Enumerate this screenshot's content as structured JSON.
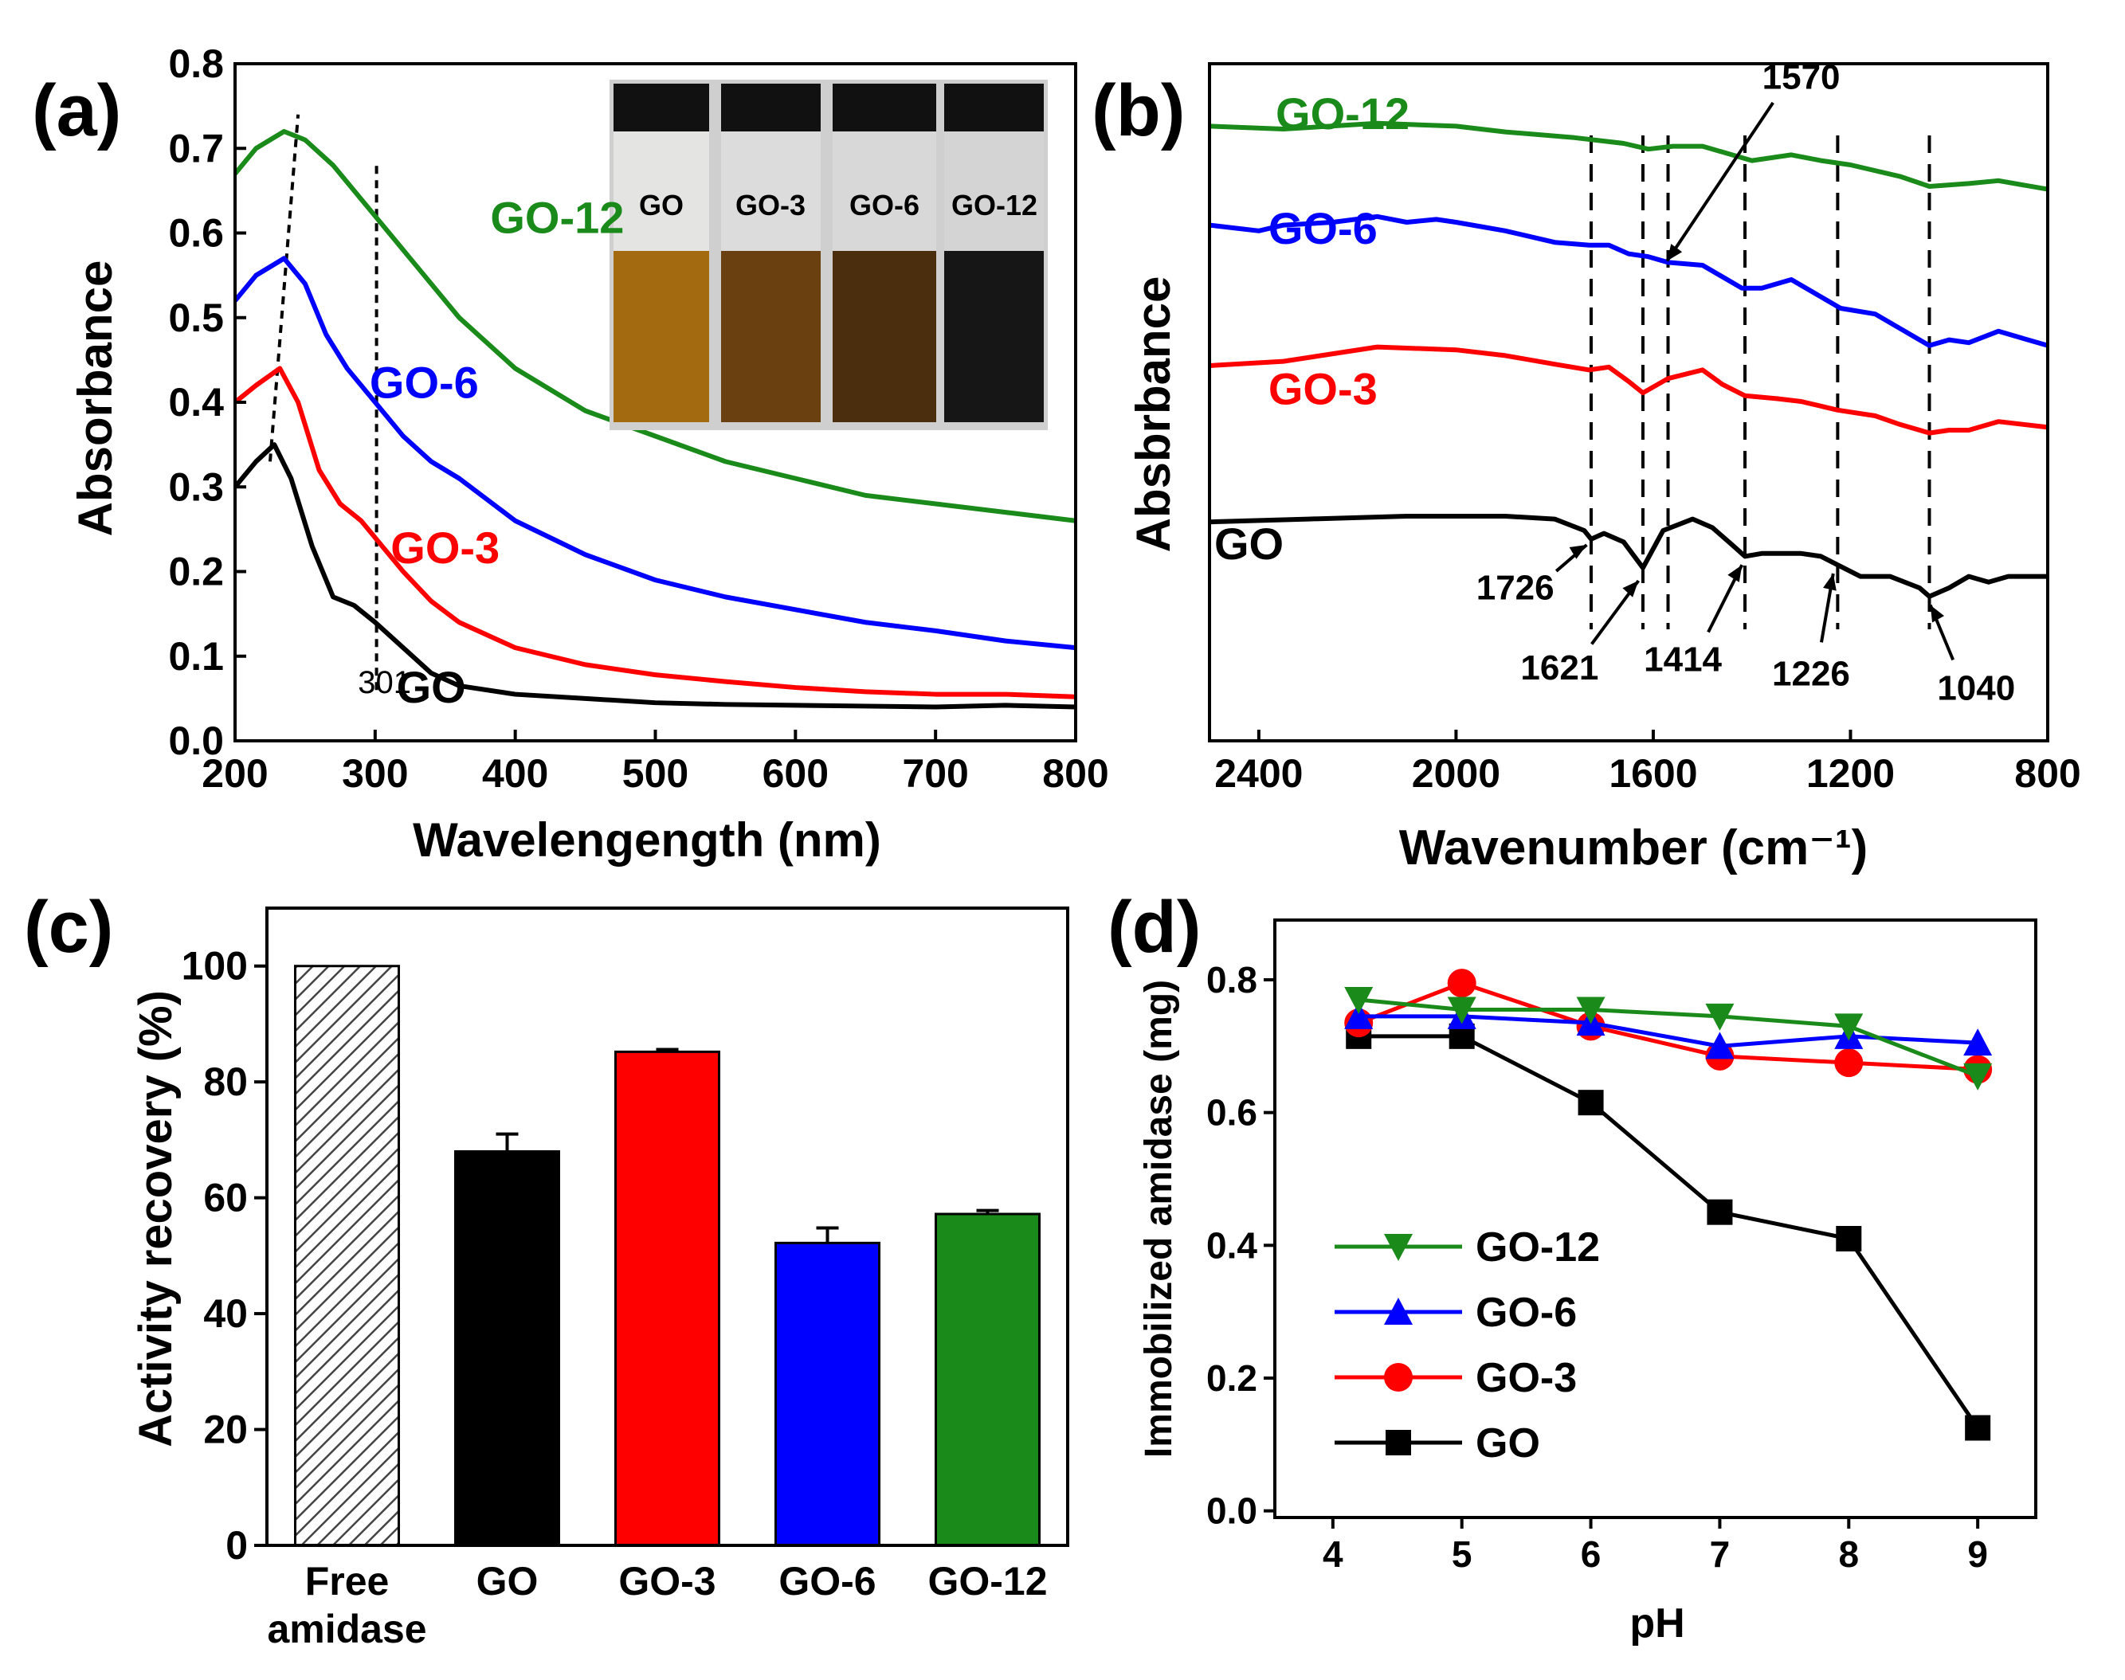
{
  "colors": {
    "black": "#000000",
    "red": "#ff0000",
    "blue": "#0000ff",
    "green": "#1a8a1a",
    "bar_green": "#1a8a1a",
    "hatch": "#444444"
  },
  "panels": {
    "a": {
      "label": "(a)"
    },
    "b": {
      "label": "(b)"
    },
    "c": {
      "label": "(c)"
    },
    "d": {
      "label": "(d)"
    }
  },
  "chart_data": [
    {
      "id": "a",
      "type": "line",
      "xlabel": "Wavelengength (nm)",
      "ylabel": "Absorbance",
      "xlim": [
        200,
        800
      ],
      "ylim": [
        0.0,
        0.8
      ],
      "xticks": [
        200,
        300,
        400,
        500,
        600,
        700,
        800
      ],
      "yticks": [
        0.0,
        0.1,
        0.2,
        0.3,
        0.4,
        0.5,
        0.6,
        0.7,
        0.8
      ],
      "ytick_labels": [
        "0.0",
        "0.1",
        "0.2",
        "0.3",
        "0.4",
        "0.5",
        "0.6",
        "0.7",
        "0.8"
      ],
      "series": [
        {
          "name": "GO",
          "color": "#000000",
          "x": [
            200,
            215,
            228,
            240,
            255,
            270,
            285,
            300,
            320,
            340,
            360,
            400,
            450,
            500,
            550,
            600,
            650,
            700,
            750,
            800
          ],
          "y": [
            0.3,
            0.33,
            0.35,
            0.31,
            0.23,
            0.17,
            0.16,
            0.14,
            0.11,
            0.08,
            0.065,
            0.055,
            0.05,
            0.045,
            0.043,
            0.042,
            0.041,
            0.04,
            0.042,
            0.04
          ]
        },
        {
          "name": "GO-3",
          "color": "#ff0000",
          "x": [
            200,
            215,
            232,
            245,
            260,
            275,
            290,
            300,
            320,
            340,
            360,
            400,
            450,
            500,
            550,
            600,
            650,
            700,
            750,
            800
          ],
          "y": [
            0.4,
            0.42,
            0.44,
            0.4,
            0.32,
            0.28,
            0.26,
            0.24,
            0.2,
            0.165,
            0.14,
            0.11,
            0.09,
            0.078,
            0.07,
            0.063,
            0.058,
            0.055,
            0.055,
            0.052
          ]
        },
        {
          "name": "GO-6",
          "color": "#0000ff",
          "x": [
            200,
            215,
            235,
            250,
            265,
            280,
            300,
            320,
            340,
            360,
            400,
            450,
            500,
            550,
            600,
            650,
            700,
            750,
            800
          ],
          "y": [
            0.52,
            0.55,
            0.57,
            0.54,
            0.48,
            0.44,
            0.4,
            0.36,
            0.33,
            0.31,
            0.26,
            0.22,
            0.19,
            0.17,
            0.155,
            0.14,
            0.13,
            0.118,
            0.11
          ]
        },
        {
          "name": "GO-12",
          "color": "#1a8a1a",
          "x": [
            200,
            215,
            235,
            250,
            270,
            300,
            330,
            360,
            400,
            450,
            500,
            550,
            600,
            650,
            700,
            750,
            800
          ],
          "y": [
            0.67,
            0.7,
            0.72,
            0.71,
            0.68,
            0.62,
            0.56,
            0.5,
            0.44,
            0.39,
            0.36,
            0.33,
            0.31,
            0.29,
            0.28,
            0.27,
            0.26
          ]
        }
      ],
      "series_labels": [
        {
          "text": "GO-12",
          "x": 430,
          "y": 0.6,
          "color": "#1a8a1a"
        },
        {
          "text": "GO-6",
          "x": 335,
          "y": 0.405,
          "color": "#0000ff"
        },
        {
          "text": "GO-3",
          "x": 350,
          "y": 0.21,
          "color": "#ff0000"
        },
        {
          "text": "GO",
          "x": 340,
          "y": 0.045,
          "color": "#000000"
        }
      ],
      "annotations": [
        {
          "text": "301",
          "x": 301,
          "y": 0.08
        }
      ],
      "guides": [
        {
          "x1": 225,
          "y1": 0.33,
          "x2": 245,
          "y2": 0.74
        },
        {
          "x1": 301,
          "y1": 0.06,
          "x2": 301,
          "y2": 0.68
        }
      ],
      "inset": {
        "vial_labels": [
          "GO",
          "GO-3",
          "GO-6",
          "GO-12"
        ]
      }
    },
    {
      "id": "b",
      "type": "line",
      "xlabel": "Wavenumber (cm⁻¹)",
      "ylabel": "Absbrbance",
      "xlim": [
        2500,
        800
      ],
      "xticks": [
        2400,
        2000,
        1600,
        1200,
        800
      ],
      "series": [
        {
          "name": "GO-12",
          "color": "#1a8a1a",
          "offset": 2.8,
          "x": [
            2500,
            2350,
            2160,
            2000,
            1900,
            1760,
            1660,
            1610,
            1560,
            1500,
            1440,
            1400,
            1320,
            1260,
            1200,
            1100,
            1040,
            960,
            900,
            800
          ],
          "y": [
            0.32,
            0.3,
            0.34,
            0.32,
            0.28,
            0.24,
            0.2,
            0.16,
            0.18,
            0.18,
            0.12,
            0.08,
            0.12,
            0.08,
            0.05,
            -0.03,
            -0.1,
            -0.08,
            -0.06,
            -0.12
          ]
        },
        {
          "name": "GO-6",
          "color": "#0000ff",
          "offset": 1.95,
          "x": [
            2500,
            2400,
            2350,
            2250,
            2160,
            2100,
            2040,
            2000,
            1900,
            1800,
            1730,
            1690,
            1650,
            1610,
            1570,
            1500,
            1460,
            1420,
            1380,
            1320,
            1270,
            1220,
            1150,
            1100,
            1060,
            1040,
            1000,
            960,
            900,
            800
          ],
          "y": [
            0.48,
            0.44,
            0.48,
            0.5,
            0.54,
            0.5,
            0.52,
            0.5,
            0.44,
            0.36,
            0.34,
            0.34,
            0.28,
            0.26,
            0.22,
            0.2,
            0.12,
            0.04,
            0.04,
            0.1,
            0.0,
            -0.1,
            -0.14,
            -0.24,
            -0.32,
            -0.36,
            -0.32,
            -0.34,
            -0.26,
            -0.36
          ]
        },
        {
          "name": "GO-3",
          "color": "#ff0000",
          "offset": 1.0,
          "x": [
            2500,
            2350,
            2160,
            2000,
            1900,
            1800,
            1730,
            1690,
            1650,
            1621,
            1570,
            1500,
            1460,
            1414,
            1350,
            1300,
            1226,
            1150,
            1100,
            1040,
            1000,
            960,
            900,
            800
          ],
          "y": [
            0.45,
            0.48,
            0.58,
            0.56,
            0.52,
            0.46,
            0.42,
            0.44,
            0.34,
            0.26,
            0.36,
            0.42,
            0.32,
            0.24,
            0.22,
            0.2,
            0.14,
            0.1,
            0.04,
            -0.02,
            0.0,
            0.0,
            0.06,
            0.02
          ]
        },
        {
          "name": "GO",
          "color": "#000000",
          "offset": 0.0,
          "x": [
            2500,
            2300,
            2100,
            1900,
            1800,
            1740,
            1726,
            1700,
            1660,
            1621,
            1580,
            1520,
            1480,
            1440,
            1414,
            1380,
            1300,
            1260,
            1226,
            1180,
            1120,
            1060,
            1040,
            1000,
            960,
            920,
            880,
            800
          ],
          "y": [
            0.36,
            0.38,
            0.4,
            0.4,
            0.38,
            0.3,
            0.24,
            0.28,
            0.22,
            0.04,
            0.3,
            0.38,
            0.32,
            0.2,
            0.12,
            0.14,
            0.14,
            0.12,
            0.06,
            -0.02,
            -0.02,
            -0.1,
            -0.16,
            -0.1,
            -0.02,
            -0.06,
            -0.02,
            -0.02
          ]
        }
      ],
      "series_labels": [
        {
          "text": "GO-12",
          "x": 2230,
          "y": 3.1,
          "color": "#1a8a1a"
        },
        {
          "text": "GO-6",
          "x": 2270,
          "y": 2.3,
          "color": "#0000ff"
        },
        {
          "text": "GO-3",
          "x": 2270,
          "y": 1.18,
          "color": "#ff0000"
        },
        {
          "text": "GO",
          "x": 2420,
          "y": 0.1,
          "color": "#000000"
        }
      ],
      "peak_lines": [
        1726,
        1621,
        1570,
        1414,
        1226,
        1040
      ],
      "peak_labels": [
        {
          "text": "1726",
          "x": 1880,
          "y": -0.18,
          "tip_x": 1735,
          "tip_y": 0.2
        },
        {
          "text": "1621",
          "x": 1790,
          "y": -0.74,
          "tip_x": 1630,
          "tip_y": -0.05
        },
        {
          "text": "1414",
          "x": 1540,
          "y": -0.68,
          "tip_x": 1420,
          "tip_y": 0.06
        },
        {
          "text": "1226",
          "x": 1280,
          "y": -0.78,
          "tip_x": 1235,
          "tip_y": 0.0
        },
        {
          "text": "1040",
          "x": 945,
          "y": -0.88,
          "tip_x": 1038,
          "tip_y": -0.22
        },
        {
          "text": "1570",
          "x": 1300,
          "y": 3.38,
          "tip_x": 1572,
          "tip_y": 2.18
        }
      ]
    },
    {
      "id": "c",
      "type": "bar",
      "ylabel": "Activity recovery  (%)",
      "ylim": [
        0,
        110
      ],
      "yticks": [
        0,
        20,
        40,
        60,
        80,
        100
      ],
      "categories": [
        [
          "Free",
          "amidase"
        ],
        [
          "GO"
        ],
        [
          "GO-3"
        ],
        [
          "GO-6"
        ],
        [
          "GO-12"
        ]
      ],
      "values": [
        100,
        68,
        85.2,
        52.2,
        57.2
      ],
      "errors": [
        0,
        3.0,
        0.4,
        2.6,
        0.6
      ],
      "colors": [
        "hatch",
        "#000000",
        "#ff0000",
        "#0000ff",
        "#1a8a1a"
      ]
    },
    {
      "id": "d",
      "type": "line",
      "xlabel": "pH",
      "ylabel": "Immobilized amidase (mg)",
      "xlim": [
        3.55,
        9.45
      ],
      "ylim": [
        -0.01,
        0.89
      ],
      "xticks": [
        4,
        5,
        6,
        7,
        8,
        9
      ],
      "yticks": [
        0.0,
        0.2,
        0.4,
        0.6,
        0.8
      ],
      "ytick_labels": [
        "0.0",
        "0.2",
        "0.4",
        "0.6",
        "0.8"
      ],
      "x": [
        4.2,
        5,
        6,
        7,
        8,
        9
      ],
      "series": [
        {
          "name": "GO-12",
          "color": "#1a8a1a",
          "marker": "triangle-down",
          "values": [
            0.77,
            0.755,
            0.755,
            0.745,
            0.73,
            0.655
          ]
        },
        {
          "name": "GO-6",
          "color": "#0000ff",
          "marker": "triangle-up",
          "values": [
            0.745,
            0.745,
            0.735,
            0.7,
            0.715,
            0.705
          ]
        },
        {
          "name": "GO-3",
          "color": "#ff0000",
          "marker": "circle",
          "values": [
            0.735,
            0.795,
            0.73,
            0.685,
            0.675,
            0.665
          ]
        },
        {
          "name": "GO",
          "color": "#000000",
          "marker": "square",
          "values": [
            0.715,
            0.715,
            0.615,
            0.45,
            0.41,
            0.125
          ]
        }
      ],
      "legend_position": "lower-left"
    }
  ]
}
